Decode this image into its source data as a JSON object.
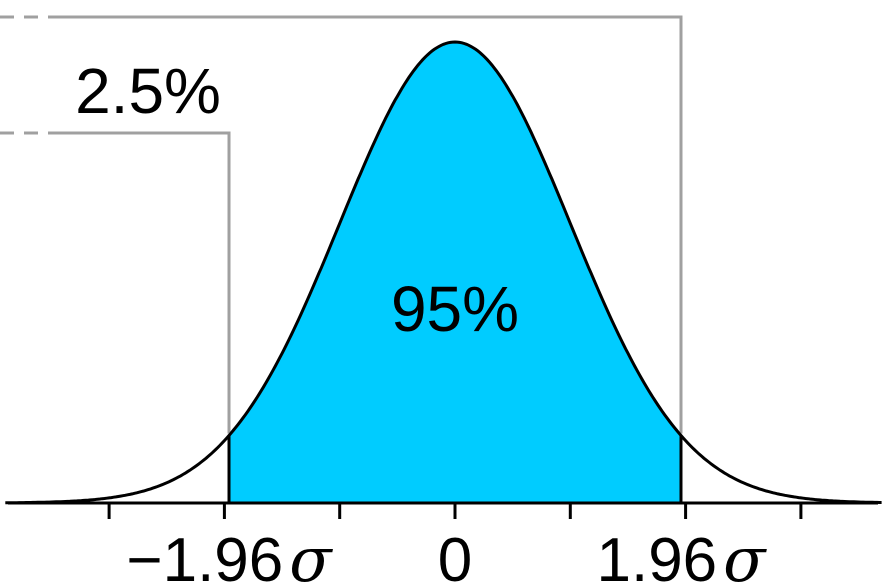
{
  "chart_data": {
    "type": "area",
    "distribution": "normal",
    "mean": 0,
    "sd": 1,
    "x_range": [
      -3.9,
      3.7
    ],
    "shaded_interval": [
      -1.96,
      1.96
    ],
    "tick_positions": [
      -3,
      -2,
      -1,
      0,
      1,
      2,
      3
    ],
    "tick_labels": [
      {
        "x": -1.96,
        "number": "−1.96",
        "symbol": "σ"
      },
      {
        "x": 0,
        "number": "0",
        "symbol": ""
      },
      {
        "x": 1.96,
        "number": "1.96",
        "symbol": "σ"
      }
    ],
    "annotations": {
      "center_area": "95%",
      "tail_area": "2.5%"
    },
    "colors": {
      "fill": "#00ccff",
      "curve": "#000000",
      "leader_lines": "#a0a0a0"
    }
  }
}
